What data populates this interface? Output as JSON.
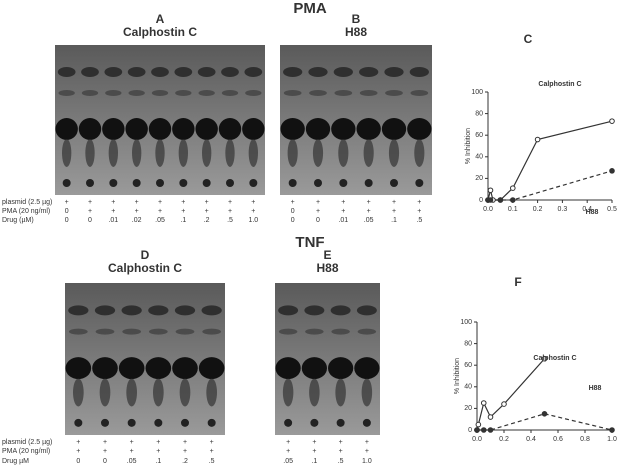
{
  "figure": {
    "sections": [
      {
        "title": "PMA",
        "row_labels": [
          "plasmid (2.5 µg)",
          "PMA (20 ng/ml)",
          "Drug (µM)"
        ],
        "gels": [
          {
            "letter": "A",
            "title": "Calphostin C",
            "plasmid": [
              "+",
              "+",
              "+",
              "+",
              "+",
              "+",
              "+",
              "+",
              "+"
            ],
            "pma": [
              "0",
              "+",
              "+",
              "+",
              "+",
              "+",
              "+",
              "+",
              "+"
            ],
            "drug": [
              "0",
              "0",
              ".01",
              ".02",
              ".05",
              ".1",
              ".2",
              ".5",
              "1.0"
            ]
          },
          {
            "letter": "B",
            "title": "H88",
            "plasmid": [
              "+",
              "+",
              "+",
              "+",
              "+",
              "+"
            ],
            "pma": [
              "0",
              "+",
              "+",
              "+",
              "+",
              "+"
            ],
            "drug": [
              "0",
              "0",
              ".01",
              ".05",
              ".1",
              ".5"
            ]
          }
        ]
      },
      {
        "title": "TNF",
        "row_labels": [
          "plasmid (2.5 µg)",
          "PMA (20 ng/ml)",
          "Drug µM"
        ],
        "gels": [
          {
            "letter": "D",
            "title": "Calphostin C",
            "plasmid": [
              "+",
              "+",
              "+",
              "+",
              "+",
              "+"
            ],
            "pma": [
              "+",
              "+",
              "+",
              "+",
              "+",
              "+"
            ],
            "drug": [
              "0",
              "0",
              ".05",
              ".1",
              ".2",
              ".5"
            ]
          },
          {
            "letter": "E",
            "title": "H88",
            "plasmid": [
              "+",
              "+",
              "+",
              "+"
            ],
            "pma": [
              "+",
              "+",
              "+",
              "+"
            ],
            "drug": [
              ".05",
              ".1",
              ".5",
              "1.0"
            ]
          }
        ]
      }
    ]
  },
  "chart_data": [
    {
      "type": "line",
      "title": "C",
      "ylabel": "% Inhibition",
      "xlim": [
        0,
        0.5
      ],
      "xticks": [
        {
          "value": 0,
          "label": "0.0"
        },
        0.1,
        0.2,
        0.3,
        0.4,
        0.5
      ],
      "ylim": [
        0,
        100
      ],
      "yticks": [
        0,
        20,
        40,
        60,
        80,
        100
      ],
      "series": [
        {
          "name": "Calphostin C",
          "color": "#333333",
          "marker": "open",
          "dashed": false,
          "x": [
            0,
            0.01,
            0.02,
            0.05,
            0.1,
            0.2,
            0.5
          ],
          "values": [
            0,
            9,
            0,
            0,
            11,
            56,
            73
          ]
        },
        {
          "name": "H88",
          "color": "#333333",
          "marker": "filled",
          "dashed": true,
          "x": [
            0,
            0.01,
            0.05,
            0.1,
            0.5
          ],
          "values": [
            0,
            0,
            0,
            0,
            27
          ]
        }
      ]
    },
    {
      "type": "line",
      "title": "F",
      "ylabel": "% Inhibition",
      "xlim": [
        0,
        1
      ],
      "xticks": [
        {
          "value": 0,
          "label": "0.0"
        },
        0.2,
        0.4,
        0.6,
        0.8,
        {
          "value": 1,
          "label": "1.0"
        }
      ],
      "ylim": [
        0,
        100
      ],
      "yticks": [
        0,
        20,
        40,
        60,
        80,
        100
      ],
      "series": [
        {
          "name": "Calphostin C",
          "color": "#333333",
          "marker": "open",
          "dashed": false,
          "x": [
            0,
            0.01,
            0.05,
            0.1,
            0.2,
            0.5
          ],
          "values": [
            0,
            5,
            25,
            12,
            24,
            66
          ]
        },
        {
          "name": "H88",
          "color": "#333333",
          "marker": "filled",
          "dashed": true,
          "x": [
            0,
            0.05,
            0.1,
            0.5,
            1
          ],
          "values": [
            0,
            0,
            0,
            15,
            0
          ]
        }
      ]
    }
  ]
}
